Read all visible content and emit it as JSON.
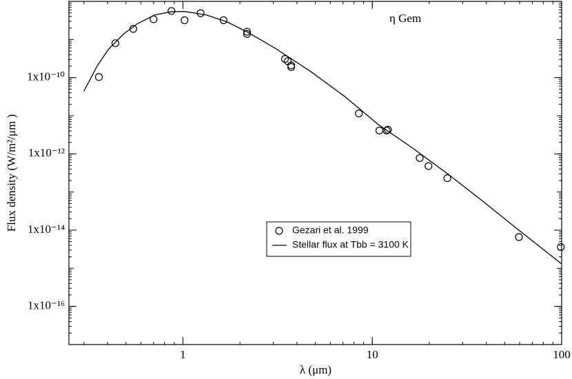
{
  "chart_data": {
    "type": "scatter-line",
    "annotation": "η  Gem",
    "xlabel": "λ  (μm)",
    "ylabel": "Flux density  (W/m²/μm )",
    "xscale": "log",
    "yscale": "log",
    "xlim": [
      0.25,
      100
    ],
    "ylim": [
      1e-17,
      1e-08
    ],
    "xticks": [
      1,
      10,
      100
    ],
    "yticks": [
      {
        "value": 1e-16,
        "label": "1x10⁻¹⁶"
      },
      {
        "value": 1e-14,
        "label": "1x10⁻¹⁴"
      },
      {
        "value": 1e-12,
        "label": "1x10⁻¹²"
      },
      {
        "value": 1e-10,
        "label": "1x10⁻¹⁰"
      }
    ],
    "minor_ticks": true,
    "series": [
      {
        "name": "Gezari et al. 1999",
        "color": "#000000",
        "marker": "circle",
        "x": [
          0.36,
          0.44,
          0.547,
          0.7,
          0.87,
          1.02,
          1.24,
          1.64,
          2.18,
          2.18,
          3.46,
          3.58,
          3.73,
          3.73,
          8.49,
          10.9,
          11.9,
          12.1,
          17.8,
          19.8,
          24.9,
          59.5,
          99
        ],
        "values": [
          1.04e-10,
          8e-10,
          1.9e-09,
          3.4e-09,
          5.6e-09,
          3.2e-09,
          4.9e-09,
          3.2e-09,
          1.6e-09,
          1.4e-09,
          3.1e-10,
          2.7e-10,
          2.1e-10,
          1.9e-10,
          1.15e-11,
          4.1e-12,
          4.1e-12,
          4.3e-12,
          7.8e-13,
          4.8e-13,
          2.3e-13,
          6.6e-15,
          3.6e-15
        ]
      },
      {
        "name": "Stellar flux at Tbb = 3100 K",
        "color": "#000000",
        "marker": "line",
        "x": [
          0.3,
          0.354,
          0.404,
          0.486,
          0.575,
          0.71,
          0.874,
          1.03,
          1.33,
          1.71,
          2.2,
          3.07,
          4.68,
          7.1,
          10.8,
          16.4,
          25.0,
          38.1,
          58.0,
          100
        ],
        "values": [
          4.4e-11,
          2.1e-10,
          5.5e-10,
          1.4e-09,
          2.6e-09,
          4.4e-09,
          5.4e-09,
          5.4e-09,
          4.4e-09,
          2.9e-09,
          1.55e-09,
          5.9e-10,
          1.5e-10,
          3.3e-11,
          5.8e-12,
          1.4e-12,
          3e-13,
          5.9e-14,
          1.1e-14,
          1.3e-15
        ]
      }
    ]
  }
}
